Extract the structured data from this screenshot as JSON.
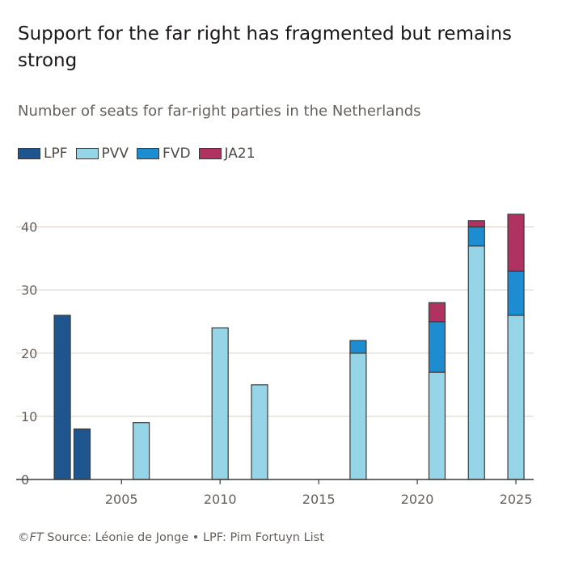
{
  "header": {
    "title": "Support for the far right has fragmented but remains strong",
    "subtitle": "Number of seats for far-right parties in the Netherlands"
  },
  "footer": {
    "copyright": "©FT",
    "source": " Source: Léonie de Jonge • LPF: Pim Fortuyn List"
  },
  "chart_data": {
    "type": "bar",
    "stacked": true,
    "x": [
      2002,
      2003,
      2006,
      2010,
      2012,
      2017,
      2021,
      2023,
      2025
    ],
    "series": [
      {
        "name": "LPF",
        "color": "#1e558f",
        "values": [
          26,
          8,
          0,
          0,
          0,
          0,
          0,
          0,
          0
        ]
      },
      {
        "name": "PVV",
        "color": "#96d4e8",
        "values": [
          0,
          0,
          9,
          24,
          15,
          20,
          17,
          37,
          26
        ]
      },
      {
        "name": "FVD",
        "color": "#1d8cd0",
        "values": [
          0,
          0,
          0,
          0,
          0,
          2,
          8,
          3,
          7
        ]
      },
      {
        "name": "JA21",
        "color": "#b03260",
        "values": [
          0,
          0,
          0,
          0,
          0,
          0,
          3,
          1,
          9
        ]
      }
    ],
    "xlim": [
      2001.3,
      2025.9
    ],
    "ylim": [
      0,
      42
    ],
    "xticks": [
      2005,
      2010,
      2015,
      2020,
      2025
    ],
    "yticks": [
      0,
      10,
      20,
      30,
      40
    ],
    "grid": true,
    "legend": "top-left"
  }
}
